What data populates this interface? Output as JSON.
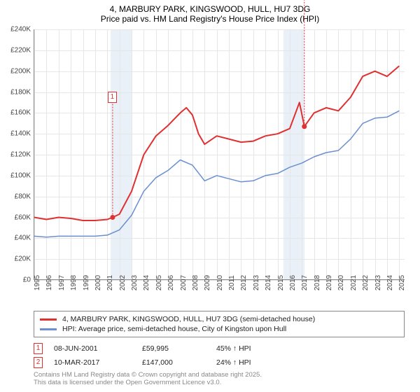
{
  "title": "4, MARBURY PARK, KINGSWOOD, HULL, HU7 3DG",
  "subtitle": "Price paid vs. HM Land Registry's House Price Index (HPI)",
  "chart": {
    "type": "line",
    "background_color": "#ffffff",
    "grid_color": "#e6e6e6",
    "axis_color": "#888888",
    "shade_color": "#eaf0f8",
    "xlim": [
      1995,
      2025.5
    ],
    "ylim": [
      0,
      240000
    ],
    "ytick_step": 20000,
    "ytick_labels": [
      "£0",
      "£20K",
      "£40K",
      "£60K",
      "£80K",
      "£100K",
      "£120K",
      "£140K",
      "£160K",
      "£180K",
      "£200K",
      "£220K",
      "£240K"
    ],
    "xtick_step": 1,
    "xtick_labels": [
      "1995",
      "1996",
      "1997",
      "1998",
      "1999",
      "2000",
      "2001",
      "2002",
      "2003",
      "2004",
      "2005",
      "2006",
      "2007",
      "2008",
      "2009",
      "2010",
      "2011",
      "2012",
      "2013",
      "2014",
      "2015",
      "2016",
      "2017",
      "2018",
      "2019",
      "2020",
      "2021",
      "2022",
      "2023",
      "2024",
      "2025"
    ],
    "tick_fontsize": 10,
    "title_fontsize": 12,
    "shade_ranges": [
      [
        2001.3,
        2003.0
      ],
      [
        2015.5,
        2017.2
      ]
    ],
    "series": [
      {
        "name": "property",
        "label": "4, MARBURY PARK, KINGSWOOD, HULL, HU7 3DG (semi-detached house)",
        "color": "#e03030",
        "line_width": 2,
        "points": [
          [
            1995,
            60000
          ],
          [
            1996,
            58000
          ],
          [
            1997,
            60000
          ],
          [
            1998,
            59000
          ],
          [
            1999,
            57000
          ],
          [
            2000,
            57000
          ],
          [
            2001,
            58000
          ],
          [
            2001.44,
            59995
          ],
          [
            2002,
            63000
          ],
          [
            2003,
            85000
          ],
          [
            2004,
            120000
          ],
          [
            2005,
            138000
          ],
          [
            2006,
            148000
          ],
          [
            2007,
            160000
          ],
          [
            2007.5,
            165000
          ],
          [
            2008,
            158000
          ],
          [
            2008.5,
            140000
          ],
          [
            2009,
            130000
          ],
          [
            2010,
            138000
          ],
          [
            2011,
            135000
          ],
          [
            2012,
            132000
          ],
          [
            2013,
            133000
          ],
          [
            2014,
            138000
          ],
          [
            2015,
            140000
          ],
          [
            2016,
            145000
          ],
          [
            2016.8,
            170000
          ],
          [
            2017.2,
            147000
          ],
          [
            2018,
            160000
          ],
          [
            2019,
            165000
          ],
          [
            2020,
            162000
          ],
          [
            2021,
            175000
          ],
          [
            2022,
            195000
          ],
          [
            2023,
            200000
          ],
          [
            2024,
            195000
          ],
          [
            2025,
            205000
          ]
        ]
      },
      {
        "name": "hpi",
        "label": "HPI: Average price, semi-detached house, City of Kingston upon Hull",
        "color": "#6a8fd0",
        "line_width": 1.5,
        "points": [
          [
            1995,
            42000
          ],
          [
            1996,
            41000
          ],
          [
            1997,
            42000
          ],
          [
            1998,
            42000
          ],
          [
            1999,
            42000
          ],
          [
            2000,
            42000
          ],
          [
            2001,
            43000
          ],
          [
            2002,
            48000
          ],
          [
            2003,
            62000
          ],
          [
            2004,
            85000
          ],
          [
            2005,
            98000
          ],
          [
            2006,
            105000
          ],
          [
            2007,
            115000
          ],
          [
            2008,
            110000
          ],
          [
            2009,
            95000
          ],
          [
            2010,
            100000
          ],
          [
            2011,
            97000
          ],
          [
            2012,
            94000
          ],
          [
            2013,
            95000
          ],
          [
            2014,
            100000
          ],
          [
            2015,
            102000
          ],
          [
            2016,
            108000
          ],
          [
            2017,
            112000
          ],
          [
            2018,
            118000
          ],
          [
            2019,
            122000
          ],
          [
            2020,
            124000
          ],
          [
            2021,
            135000
          ],
          [
            2022,
            150000
          ],
          [
            2023,
            155000
          ],
          [
            2024,
            156000
          ],
          [
            2025,
            162000
          ]
        ]
      }
    ],
    "markers": [
      {
        "num": "1",
        "x": 2001.44,
        "y": 59995,
        "color": "#e03030",
        "label_y_offset": -180
      },
      {
        "num": "2",
        "x": 2017.2,
        "y": 147000,
        "color": "#e03030",
        "label_y_offset": -200
      }
    ]
  },
  "legend": {
    "border_color": "#888888",
    "items": [
      {
        "color": "#e03030",
        "text": "4, MARBURY PARK, KINGSWOOD, HULL, HU7 3DG (semi-detached house)"
      },
      {
        "color": "#6a8fd0",
        "text": "HPI: Average price, semi-detached house, City of Kingston upon Hull"
      }
    ]
  },
  "marker_table": {
    "rows": [
      {
        "num": "1",
        "color": "#e03030",
        "date": "08-JUN-2001",
        "price": "£59,995",
        "pct": "45% ↑ HPI"
      },
      {
        "num": "2",
        "color": "#e03030",
        "date": "10-MAR-2017",
        "price": "£147,000",
        "pct": "24% ↑ HPI"
      }
    ]
  },
  "footer": {
    "line1": "Contains HM Land Registry data © Crown copyright and database right 2025.",
    "line2": "This data is licensed under the Open Government Licence v3.0."
  }
}
